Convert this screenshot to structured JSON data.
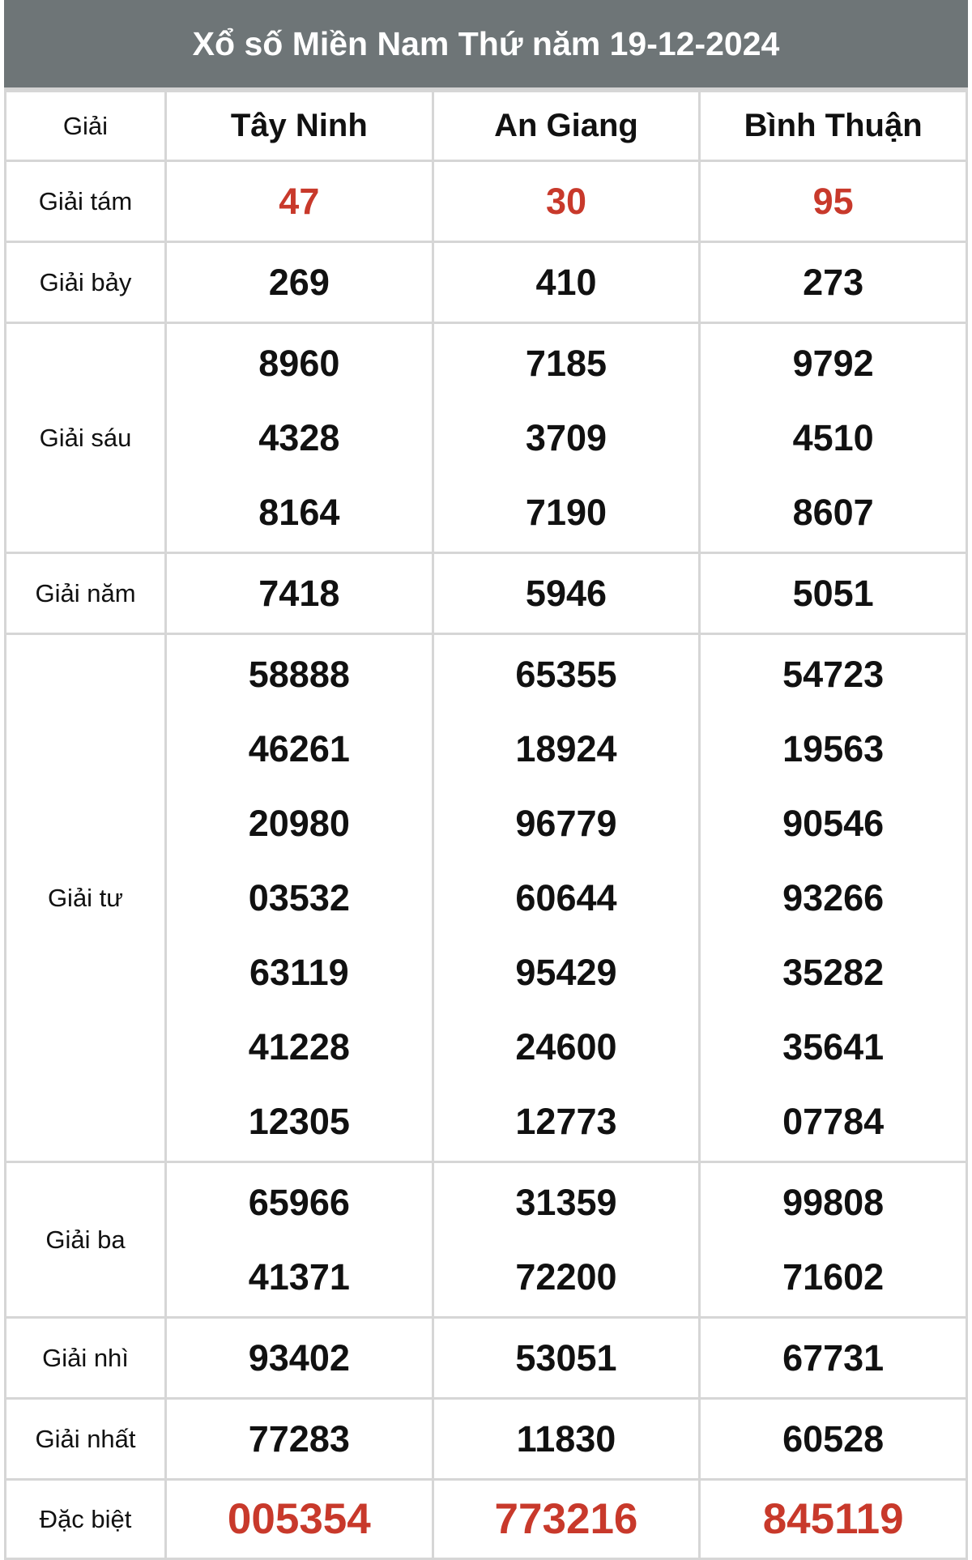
{
  "title": "Xổ số Miền Nam Thứ năm 19-12-2024",
  "header": {
    "label": "Giải",
    "provinces": [
      "Tây Ninh",
      "An Giang",
      "Bình Thuận"
    ]
  },
  "colors": {
    "header_bg": "#6e7577",
    "highlight": "#c8392b"
  },
  "rows": [
    {
      "label": "Giải tám",
      "highlight": true,
      "values": [
        [
          "47"
        ],
        [
          "30"
        ],
        [
          "95"
        ]
      ]
    },
    {
      "label": "Giải bảy",
      "values": [
        [
          "269"
        ],
        [
          "410"
        ],
        [
          "273"
        ]
      ]
    },
    {
      "label": "Giải sáu",
      "values": [
        [
          "8960",
          "4328",
          "8164"
        ],
        [
          "7185",
          "3709",
          "7190"
        ],
        [
          "9792",
          "4510",
          "8607"
        ]
      ]
    },
    {
      "label": "Giải năm",
      "values": [
        [
          "7418"
        ],
        [
          "5946"
        ],
        [
          "5051"
        ]
      ]
    },
    {
      "label": "Giải tư",
      "values": [
        [
          "58888",
          "46261",
          "20980",
          "03532",
          "63119",
          "41228",
          "12305"
        ],
        [
          "65355",
          "18924",
          "96779",
          "60644",
          "95429",
          "24600",
          "12773"
        ],
        [
          "54723",
          "19563",
          "90546",
          "93266",
          "35282",
          "35641",
          "07784"
        ]
      ]
    },
    {
      "label": "Giải ba",
      "values": [
        [
          "65966",
          "41371"
        ],
        [
          "31359",
          "72200"
        ],
        [
          "99808",
          "71602"
        ]
      ]
    },
    {
      "label": "Giải nhì",
      "values": [
        [
          "93402"
        ],
        [
          "53051"
        ],
        [
          "67731"
        ]
      ]
    },
    {
      "label": "Giải nhất",
      "values": [
        [
          "77283"
        ],
        [
          "11830"
        ],
        [
          "60528"
        ]
      ]
    },
    {
      "label": "Đặc biệt",
      "highlight": true,
      "big": true,
      "values": [
        [
          "005354"
        ],
        [
          "773216"
        ],
        [
          "845119"
        ]
      ]
    }
  ]
}
